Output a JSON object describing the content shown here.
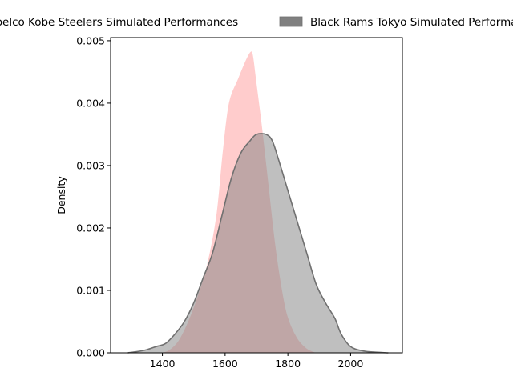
{
  "chart_data": {
    "type": "area",
    "title": "",
    "xlabel": "",
    "ylabel": "Density",
    "xlim": [
      1235,
      2165
    ],
    "ylim": [
      0,
      0.00505
    ],
    "xticks": [
      1400,
      1600,
      1800,
      2000
    ],
    "yticks": [
      0.0,
      0.001,
      0.002,
      0.003,
      0.004,
      0.005
    ],
    "ytick_labels": [
      "0.000",
      "0.001",
      "0.002",
      "0.003",
      "0.004",
      "0.005"
    ],
    "legend_position": "top, above plot",
    "series": [
      {
        "name": "Kobelco Kobe Steelers Simulated Performances",
        "color": "#ff9999",
        "edge_color": "#ffffff",
        "points": [
          [
            1390,
            0
          ],
          [
            1420,
            5e-05
          ],
          [
            1450,
            0.0002
          ],
          [
            1480,
            0.0005
          ],
          [
            1510,
            0.0009
          ],
          [
            1540,
            0.0014
          ],
          [
            1570,
            0.0022
          ],
          [
            1590,
            0.0032
          ],
          [
            1610,
            0.004
          ],
          [
            1640,
            0.0044
          ],
          [
            1665,
            0.0047
          ],
          [
            1680,
            0.00483
          ],
          [
            1690,
            0.00478
          ],
          [
            1700,
            0.0044
          ],
          [
            1720,
            0.0036
          ],
          [
            1740,
            0.0027
          ],
          [
            1760,
            0.0018
          ],
          [
            1780,
            0.0011
          ],
          [
            1800,
            0.0006
          ],
          [
            1830,
            0.00025
          ],
          [
            1860,
            8e-05
          ],
          [
            1890,
            1e-05
          ],
          [
            1910,
            0
          ]
        ]
      },
      {
        "name": "Black Rams Tokyo Simulated Performances",
        "color": "#808080",
        "edge_color": "#707070",
        "points": [
          [
            1290,
            0
          ],
          [
            1320,
            2e-05
          ],
          [
            1350,
            5e-05
          ],
          [
            1380,
            0.0001
          ],
          [
            1410,
            0.00015
          ],
          [
            1440,
            0.0003
          ],
          [
            1470,
            0.0005
          ],
          [
            1500,
            0.0008
          ],
          [
            1530,
            0.0012
          ],
          [
            1560,
            0.0016
          ],
          [
            1590,
            0.0022
          ],
          [
            1620,
            0.0028
          ],
          [
            1650,
            0.0032
          ],
          [
            1680,
            0.0034
          ],
          [
            1700,
            0.0035
          ],
          [
            1730,
            0.0035
          ],
          [
            1750,
            0.0034
          ],
          [
            1770,
            0.0031
          ],
          [
            1800,
            0.0026
          ],
          [
            1830,
            0.0021
          ],
          [
            1860,
            0.0016
          ],
          [
            1890,
            0.0011
          ],
          [
            1920,
            0.0008
          ],
          [
            1950,
            0.00055
          ],
          [
            1970,
            0.0003
          ],
          [
            2000,
            0.0001
          ],
          [
            2040,
            3e-05
          ],
          [
            2080,
            1e-05
          ],
          [
            2120,
            0
          ]
        ]
      }
    ]
  }
}
